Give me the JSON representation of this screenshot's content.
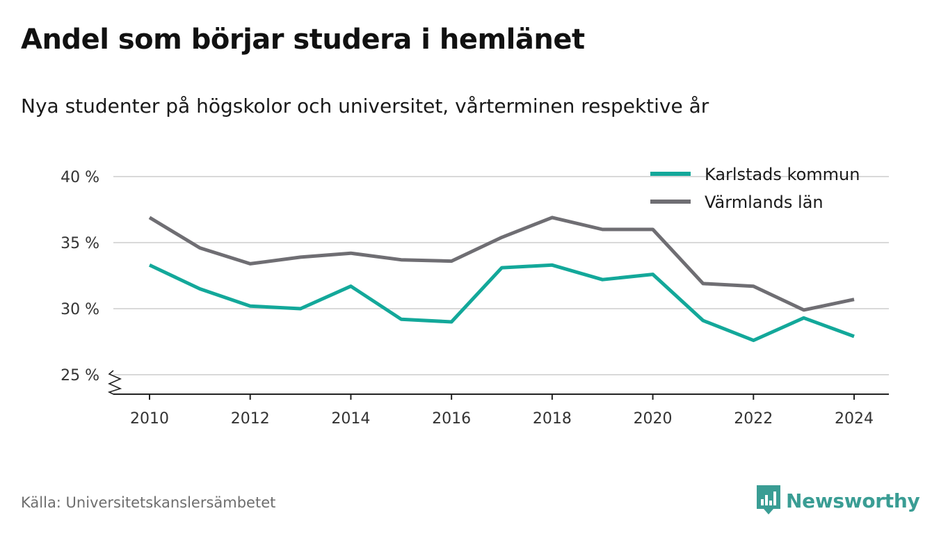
{
  "header": {
    "title": "Andel som börjar studera i hemlänet",
    "subtitle": "Nya studenter på högskolor och universitet, vårterminen respektive år"
  },
  "footer": {
    "source": "Källa: Universitetskanslersämbetet",
    "brand": "Newsworthy",
    "brand_icon": "bar-chart-icon",
    "brand_color": "#3a9d94"
  },
  "chart_data": {
    "type": "line",
    "x": [
      2010,
      2011,
      2012,
      2013,
      2014,
      2015,
      2016,
      2017,
      2018,
      2019,
      2020,
      2021,
      2022,
      2023,
      2024
    ],
    "xticks": [
      2010,
      2012,
      2014,
      2016,
      2018,
      2020,
      2022,
      2024
    ],
    "yticks": [
      25,
      30,
      35,
      40
    ],
    "ytick_labels": [
      "25 %",
      "30 %",
      "35 %",
      "40 %"
    ],
    "ylim": [
      23.5,
      40
    ],
    "y_axis_break": true,
    "grid": true,
    "legend_position": "top-right",
    "series": [
      {
        "name": "Karlstads kommun",
        "color": "#13a89a",
        "values": [
          33.3,
          31.5,
          30.2,
          30.0,
          31.7,
          29.2,
          29.0,
          33.1,
          33.3,
          32.2,
          32.6,
          29.1,
          27.6,
          29.3,
          27.9
        ]
      },
      {
        "name": "Värmlands län",
        "color": "#6f6e73",
        "values": [
          36.9,
          34.6,
          33.4,
          33.9,
          34.2,
          33.7,
          33.6,
          35.4,
          36.9,
          36.0,
          36.0,
          31.9,
          31.7,
          29.9,
          30.7
        ]
      }
    ]
  }
}
